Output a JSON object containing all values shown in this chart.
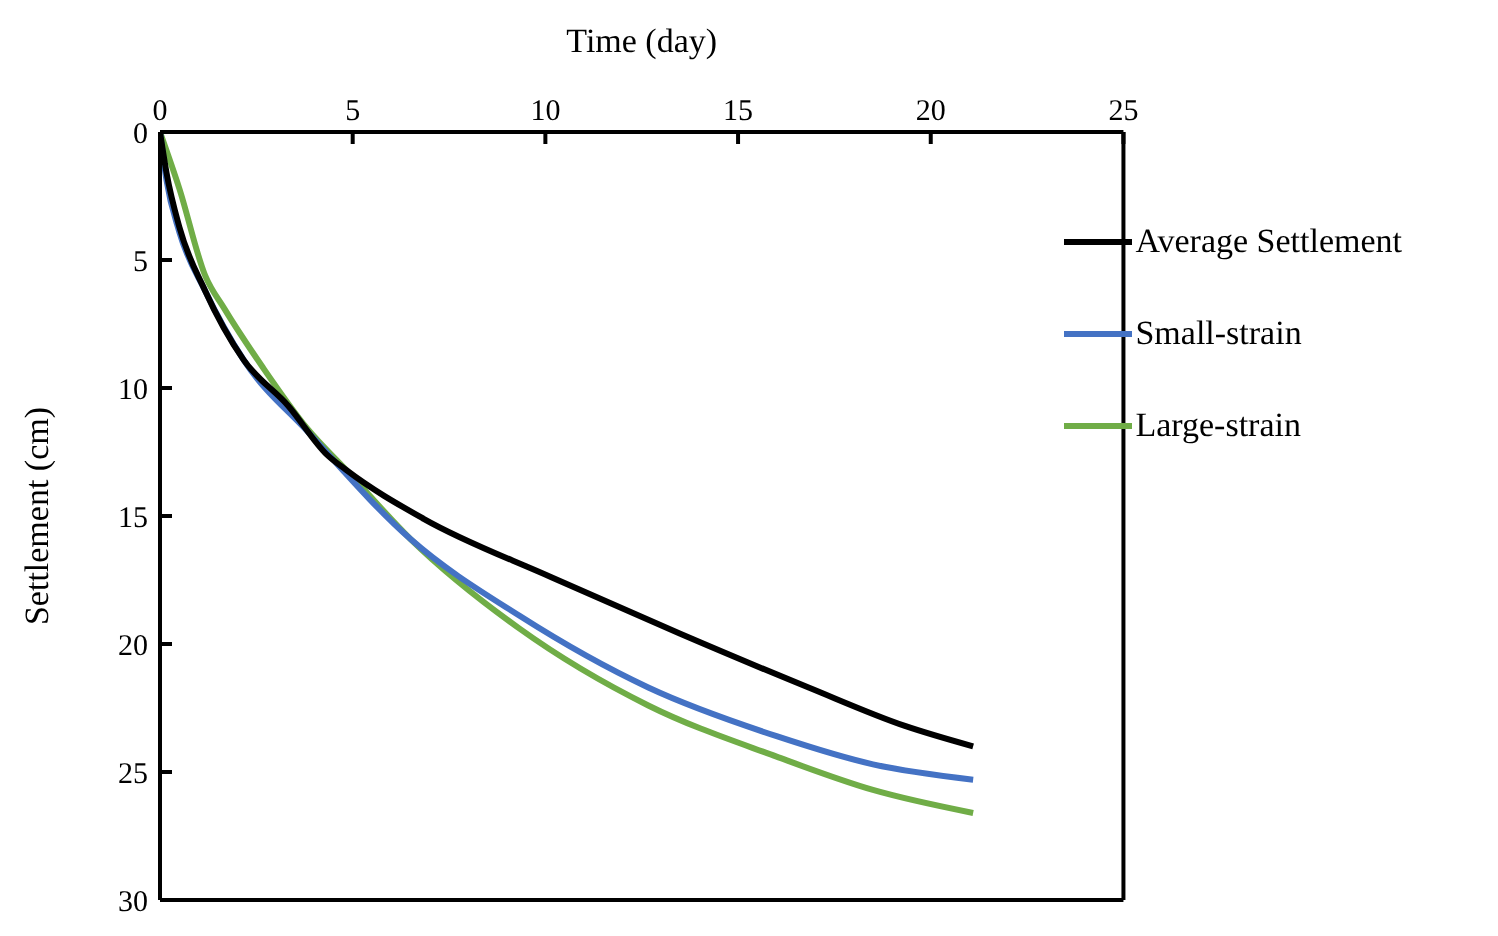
{
  "chart_data": {
    "type": "line",
    "xlabel": "Time (day)",
    "ylabel": "Settlement (cm)",
    "xlim": [
      0,
      25
    ],
    "xticks": [
      0,
      5,
      10,
      15,
      20,
      25
    ],
    "ylim": [
      30,
      0
    ],
    "yticks": [
      0,
      5,
      10,
      15,
      20,
      25,
      30
    ],
    "grid": false,
    "legend": "top right",
    "marker": "none",
    "line_style": "solid",
    "series": [
      {
        "name": "Average Settlement",
        "color": "#000000",
        "x": [
          0,
          0.17,
          0.5,
          1.17,
          2.17,
          3.33,
          4.33,
          4.83,
          6.83,
          10.17,
          13.5,
          16.83,
          19.33,
          21.1
        ],
        "values": [
          0,
          1.6,
          3.7,
          6.2,
          8.9,
          10.7,
          12.6,
          13.2,
          15.1,
          17.4,
          19.6,
          21.7,
          23.2,
          24.0
        ]
      },
      {
        "name": "Small-strain",
        "color": "#4472c4",
        "x": [
          0,
          0.17,
          0.5,
          1.17,
          2.17,
          3.83,
          6.5,
          9.33,
          12.67,
          16,
          18.5,
          21.1
        ],
        "values": [
          0,
          1.9,
          3.9,
          6.2,
          8.9,
          11.7,
          15.9,
          18.9,
          21.7,
          23.6,
          24.7,
          25.3
        ]
      },
      {
        "name": "Large-strain",
        "color": "#70ad47",
        "x": [
          0,
          0.5,
          1.17,
          1.67,
          2.67,
          3.83,
          4.83,
          6.5,
          9.33,
          12.67,
          16,
          18.5,
          21.1
        ],
        "values": [
          0,
          2.2,
          5.6,
          6.9,
          9.2,
          11.6,
          13.2,
          15.9,
          19.4,
          22.4,
          24.4,
          25.7,
          26.6
        ]
      }
    ]
  }
}
